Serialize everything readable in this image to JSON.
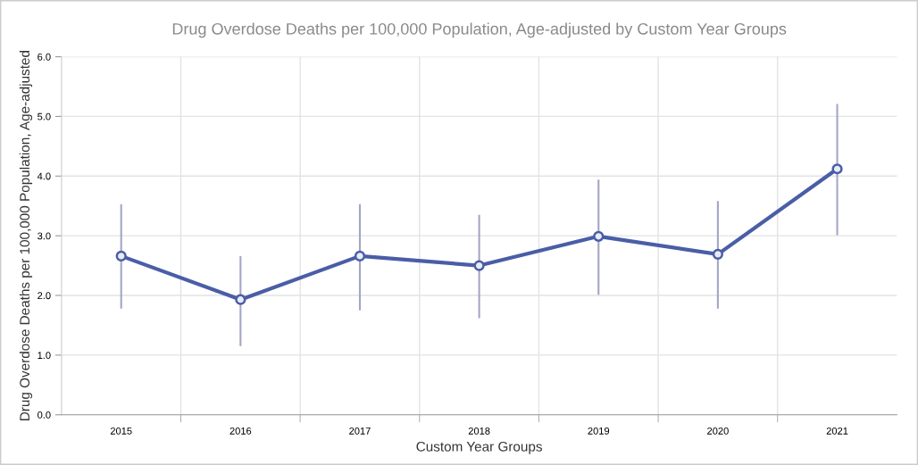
{
  "chart_data": {
    "type": "line",
    "title": "Drug Overdose Deaths per 100,000 Population, Age-adjusted by Custom Year Groups",
    "xlabel": "Custom Year Groups",
    "ylabel": "Drug Overdose Deaths per 100,000 Population, Age-adjusted",
    "categories": [
      "2015",
      "2016",
      "2017",
      "2018",
      "2019",
      "2020",
      "2021"
    ],
    "series": [
      {
        "color": "#4a5ea6",
        "values": [
          2.66,
          1.93,
          2.66,
          2.5,
          2.99,
          2.69,
          4.12
        ],
        "errors": [
          [
            1.78,
            3.53
          ],
          [
            1.15,
            2.66
          ],
          [
            1.75,
            3.53
          ],
          [
            1.62,
            3.35
          ],
          [
            2.01,
            3.94
          ],
          [
            1.78,
            3.58
          ],
          [
            3.01,
            5.21
          ]
        ]
      }
    ],
    "ylim": [
      0,
      6
    ],
    "yticks": [
      {
        "value": 0,
        "label": "0.0"
      },
      {
        "value": 1,
        "label": "1.0"
      },
      {
        "value": 2,
        "label": "2.0"
      },
      {
        "value": 3,
        "label": "3.0"
      },
      {
        "value": 4,
        "label": "4.0"
      },
      {
        "value": 5,
        "label": "5.0"
      },
      {
        "value": 6,
        "label": "6.0"
      }
    ],
    "grid": true,
    "marker": "circle",
    "line_style": "solid",
    "legend": false
  }
}
